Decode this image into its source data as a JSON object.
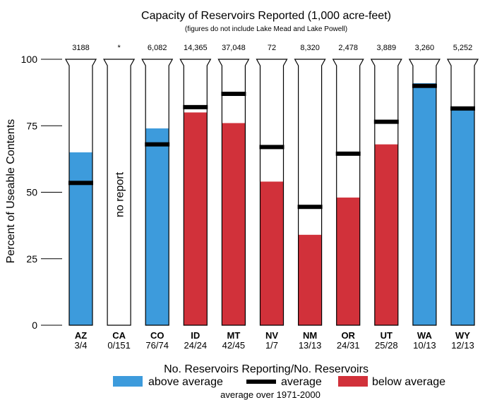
{
  "chart_data": {
    "type": "bar",
    "title": "Capacity of Reservoirs Reported (1,000 acre-feet)",
    "subtitle": "(figures do not include Lake Mead and Lake Powell)",
    "ylabel": "Percent of Useable Contents",
    "xlabel": "No. Reservoirs Reporting/No. Reservoirs",
    "footnote": "average over 1971-2000",
    "ylim": [
      0,
      100
    ],
    "yticks": [
      0,
      25,
      50,
      75,
      100
    ],
    "categories": [
      "AZ",
      "CA",
      "CO",
      "ID",
      "MT",
      "NV",
      "NM",
      "OR",
      "UT",
      "WA",
      "WY"
    ],
    "capacity": [
      "3188",
      "*",
      "6,082",
      "14,365",
      "37,048",
      "72",
      "8,320",
      "2,478",
      "3,889",
      "3,260",
      "5,252"
    ],
    "reporting": [
      "3/4",
      "0/151",
      "76/74",
      "24/24",
      "42/45",
      "1/7",
      "13/13",
      "24/31",
      "25/28",
      "10/13",
      "12/13"
    ],
    "current_percent": [
      65,
      null,
      74,
      80,
      76,
      54,
      34,
      48,
      68,
      91,
      81
    ],
    "average_percent": [
      53.5,
      null,
      68,
      82,
      87,
      67,
      44.5,
      64.5,
      76.5,
      90,
      81.5
    ],
    "status": [
      "above",
      "none",
      "above",
      "below",
      "below",
      "below",
      "below",
      "below",
      "below",
      "above",
      "above"
    ],
    "no_report_label": "no report",
    "legend": {
      "above": "above average",
      "average": "average",
      "below": "below average"
    },
    "colors": {
      "above": "#3d9bdc",
      "below": "#d1313a",
      "average": "#000000"
    }
  }
}
